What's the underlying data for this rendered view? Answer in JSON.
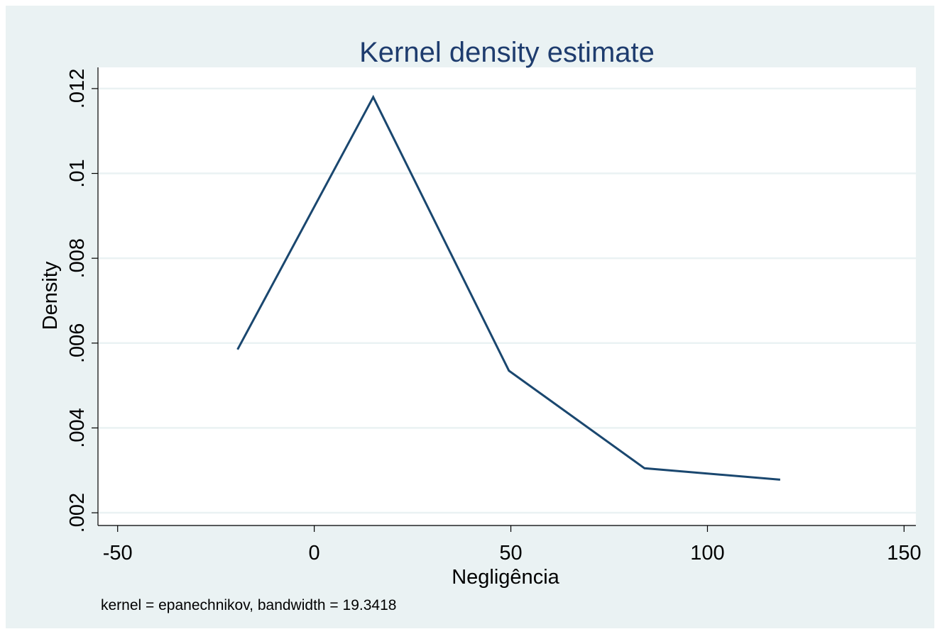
{
  "chart_data": {
    "type": "line",
    "title": "Kernel density estimate",
    "xlabel": "Negligência",
    "ylabel": "Density",
    "note": "kernel = epanechnikov, bandwidth = 19.3418",
    "xlim": [
      -55,
      153
    ],
    "ylim": [
      0.0017,
      0.0125
    ],
    "xticks": [
      {
        "value": -50,
        "label": "-50"
      },
      {
        "value": 0,
        "label": "0"
      },
      {
        "value": 50,
        "label": "50"
      },
      {
        "value": 100,
        "label": "100"
      },
      {
        "value": 150,
        "label": "150"
      }
    ],
    "yticks": [
      {
        "value": 0.002,
        "label": ".002"
      },
      {
        "value": 0.004,
        "label": ".004"
      },
      {
        "value": 0.006,
        "label": ".006"
      },
      {
        "value": 0.008,
        "label": ".008"
      },
      {
        "value": 0.01,
        "label": ".01"
      },
      {
        "value": 0.012,
        "label": ".012"
      }
    ],
    "grid": true,
    "series": [
      {
        "x": [
          -19.5,
          15,
          49.5,
          84,
          118.5
        ],
        "y": [
          0.00585,
          0.0118,
          0.00535,
          0.00305,
          0.00278
        ]
      }
    ],
    "colors": {
      "outer_background": "#eaf2f3",
      "plot_background": "#ffffff",
      "title": "#1e3c6e",
      "line": "#1a476f",
      "grid": "#eaf2f3",
      "axis": "#000000"
    }
  }
}
